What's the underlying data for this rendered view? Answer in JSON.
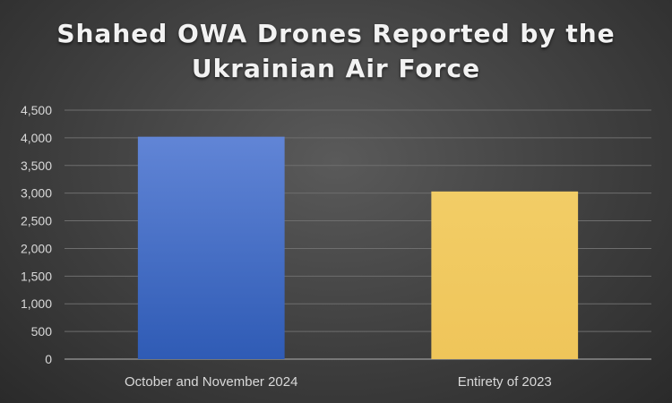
{
  "chart_data": {
    "type": "bar",
    "title": "Shahed OWA Drones Reported by the Ukrainian Air Force",
    "title_lines": [
      "Shahed OWA Drones Reported by the",
      "Ukrainian Air Force"
    ],
    "categories": [
      "October and November 2024",
      "Entirety of 2023"
    ],
    "values": [
      4020,
      3030
    ],
    "bar_colors": [
      "#4472C4",
      "#F0C95C"
    ],
    "ylim": [
      0,
      4500
    ],
    "yticks": [
      0,
      500,
      1000,
      1500,
      2000,
      2500,
      3000,
      3500,
      4000,
      4500
    ],
    "ytick_labels": [
      "0",
      "500",
      "1,000",
      "1,500",
      "2,000",
      "2,500",
      "3,000",
      "3,500",
      "4,000",
      "4,500"
    ],
    "grid": true,
    "legend": "none",
    "xlabel": "",
    "ylabel": ""
  }
}
